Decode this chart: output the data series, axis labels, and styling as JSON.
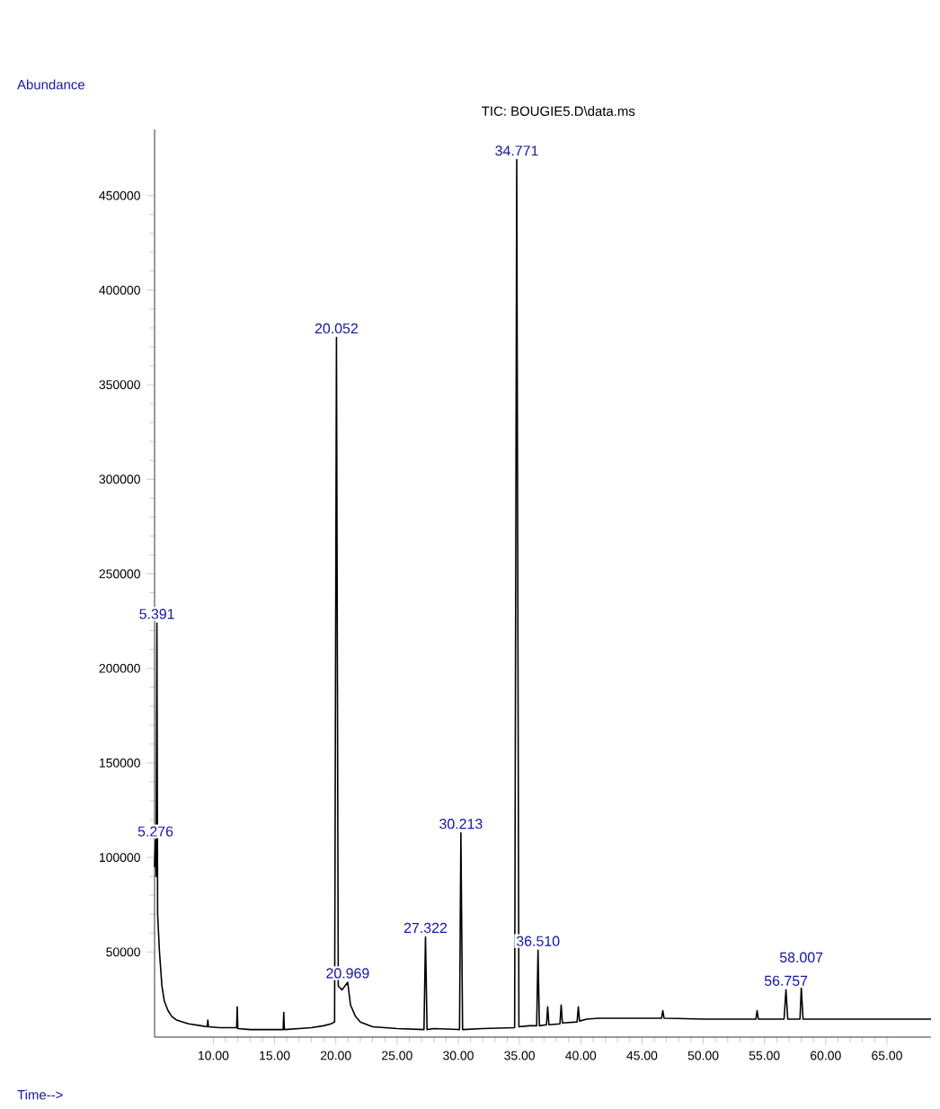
{
  "chart_data": {
    "type": "line",
    "title": "TIC: BOUGIE5.D\\data.ms",
    "xlabel": "Time-->",
    "ylabel": "Abundance",
    "xlim": [
      5.2,
      68.6
    ],
    "ylim": [
      5000,
      485000
    ],
    "xticks": [
      {
        "value": 10,
        "label": "10.00"
      },
      {
        "value": 15,
        "label": "15.00"
      },
      {
        "value": 20,
        "label": "20.00"
      },
      {
        "value": 25,
        "label": "25.00"
      },
      {
        "value": 30,
        "label": "30.00"
      },
      {
        "value": 35,
        "label": "35.00"
      },
      {
        "value": 40,
        "label": "40.00"
      },
      {
        "value": 45,
        "label": "45.00"
      },
      {
        "value": 50,
        "label": "50.00"
      },
      {
        "value": 55,
        "label": "55.00"
      },
      {
        "value": 60,
        "label": "60.00"
      },
      {
        "value": 65,
        "label": "65.00"
      }
    ],
    "yticks": [
      50000,
      100000,
      150000,
      200000,
      250000,
      300000,
      350000,
      400000,
      450000
    ],
    "x": [
      5.2,
      5.276,
      5.33,
      5.391,
      5.45,
      5.6,
      5.8,
      6.0,
      6.3,
      6.6,
      7.0,
      7.5,
      8.0,
      9.0,
      9.5,
      9.55,
      9.6,
      10.5,
      11.9,
      11.95,
      12.0,
      13,
      15.0,
      15.7,
      15.75,
      15.8,
      17,
      18,
      19,
      19.6,
      19.9,
      20.052,
      20.2,
      20.5,
      20.969,
      21.2,
      21.6,
      22,
      23,
      25,
      27.2,
      27.322,
      27.45,
      28,
      30.1,
      30.213,
      30.35,
      32,
      34.6,
      34.771,
      34.95,
      35.8,
      36.4,
      36.51,
      36.62,
      37.2,
      37.3,
      37.4,
      38.3,
      38.4,
      38.5,
      39.7,
      39.8,
      39.9,
      40.5,
      41.5,
      45,
      46.6,
      46.7,
      46.8,
      50,
      54.3,
      54.4,
      54.5,
      56.6,
      56.757,
      56.9,
      57.9,
      58.007,
      58.15,
      62,
      68.6
    ],
    "series": [
      {
        "color": "#000000",
        "values": [
          95000,
          109000,
          90000,
          224000,
          70000,
          50000,
          32000,
          24000,
          19000,
          16000,
          14000,
          13000,
          12000,
          11000,
          10500,
          14000,
          10500,
          10000,
          10000,
          21000,
          9500,
          9000,
          9000,
          9000,
          18000,
          9000,
          9500,
          10000,
          11000,
          12000,
          13000,
          375000,
          32000,
          30000,
          34000,
          22000,
          16000,
          13000,
          10500,
          9500,
          9000,
          58000,
          9000,
          9500,
          9000,
          113000,
          9000,
          9500,
          10000,
          469000,
          10500,
          11000,
          11000,
          51000,
          11000,
          11500,
          21000,
          11500,
          12000,
          22000,
          12500,
          13000,
          21000,
          13500,
          14500,
          15000,
          15000,
          15000,
          19000,
          15000,
          14500,
          14500,
          19000,
          14500,
          14500,
          30000,
          14500,
          14500,
          31000,
          14500,
          14500,
          14500
        ]
      }
    ],
    "annotations": [
      {
        "text": "5.276",
        "x": 5.276,
        "y": 109000
      },
      {
        "text": "5.391",
        "x": 5.391,
        "y": 224000
      },
      {
        "text": "20.052",
        "x": 20.052,
        "y": 375000
      },
      {
        "text": "20.969",
        "x": 20.969,
        "y": 34000
      },
      {
        "text": "27.322",
        "x": 27.322,
        "y": 58000
      },
      {
        "text": "30.213",
        "x": 30.213,
        "y": 113000
      },
      {
        "text": "34.771",
        "x": 34.771,
        "y": 469000
      },
      {
        "text": "36.510",
        "x": 36.51,
        "y": 51000
      },
      {
        "text": "56.757",
        "x": 56.757,
        "y": 30000
      },
      {
        "text": "58.007",
        "x": 58.007,
        "y": 31000
      }
    ]
  }
}
